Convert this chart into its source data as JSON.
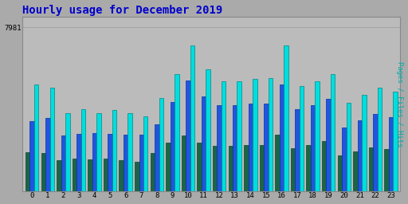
{
  "title": "Hourly usage for December 2019",
  "title_color": "#0000cc",
  "title_fontsize": 10,
  "background_color": "#aaaaaa",
  "plot_bg_color": "#bbbbbb",
  "hours": [
    0,
    1,
    2,
    3,
    4,
    5,
    6,
    7,
    8,
    9,
    10,
    11,
    12,
    13,
    14,
    15,
    16,
    17,
    18,
    19,
    20,
    21,
    22,
    23
  ],
  "hits": [
    5200,
    5050,
    3800,
    4000,
    3800,
    3950,
    3800,
    3650,
    4550,
    5700,
    7100,
    5950,
    5350,
    5350,
    5450,
    5500,
    7100,
    5100,
    5350,
    5700,
    4300,
    4700,
    5050,
    4850
  ],
  "files": [
    3400,
    3550,
    2700,
    2800,
    2850,
    2800,
    2750,
    2750,
    3250,
    4350,
    5400,
    4600,
    4200,
    4200,
    4250,
    4250,
    5200,
    4000,
    4200,
    4500,
    3100,
    3450,
    3750,
    3600
  ],
  "pages": [
    1900,
    1850,
    1500,
    1600,
    1550,
    1600,
    1500,
    1450,
    1850,
    2350,
    2700,
    2350,
    2200,
    2200,
    2250,
    2250,
    2750,
    2100,
    2250,
    2450,
    1750,
    1950,
    2150,
    2050
  ],
  "hits_color": "#00dddd",
  "files_color": "#2255dd",
  "pages_color": "#1a6644",
  "hits_edge": "#008888",
  "files_edge": "#0033aa",
  "pages_edge": "#0d4433",
  "max_val": 7981,
  "ymax": 8500,
  "bar_width": 0.28
}
